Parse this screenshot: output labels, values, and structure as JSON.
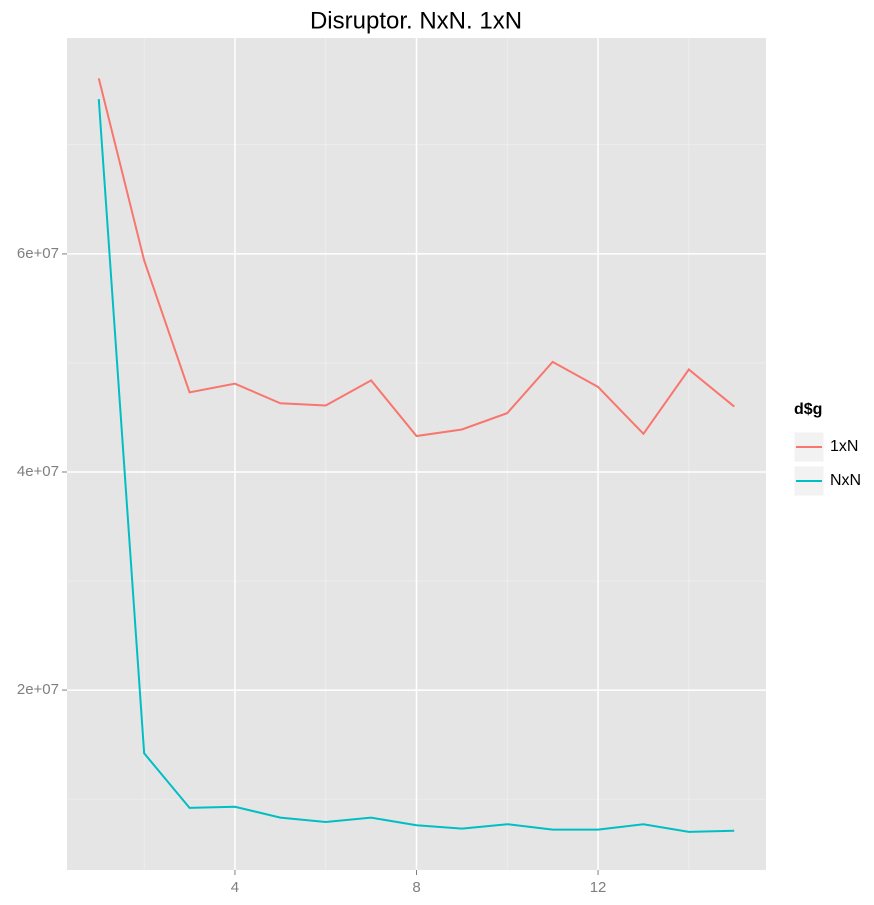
{
  "chart_data": {
    "type": "line",
    "title": "Disruptor. NxN. 1xN",
    "x": [
      1,
      2,
      3,
      4,
      5,
      6,
      7,
      8,
      9,
      10,
      11,
      12,
      13,
      14,
      15
    ],
    "series": [
      {
        "name": "1xN",
        "color": "#f8766d",
        "values": [
          76100000,
          59400000,
          47300000,
          48100000,
          46300000,
          46100000,
          48400000,
          43300000,
          43900000,
          45400000,
          50100000,
          47800000,
          43500000,
          49400000,
          46000000
        ]
      },
      {
        "name": "NxN",
        "color": "#00bfc4",
        "values": [
          74200000,
          14200000,
          9200000,
          9300000,
          8300000,
          7900000,
          8300000,
          7600000,
          7300000,
          7700000,
          7200000,
          7200000,
          7700000,
          7000000,
          7100000
        ]
      }
    ],
    "xlim": [
      0.3,
      15.7
    ],
    "xticks": [
      4,
      8,
      12
    ],
    "minor_xticks": [
      2,
      6,
      10,
      14
    ],
    "ylim": [
      3500000,
      79800000
    ],
    "yticks": [
      {
        "value": 20000000,
        "label": "2e+07"
      },
      {
        "value": 40000000,
        "label": "4e+07"
      },
      {
        "value": 60000000,
        "label": "6e+07"
      }
    ],
    "minor_yticks": [
      10000000,
      30000000,
      50000000,
      70000000
    ],
    "grid": true,
    "legend_title": "d$g",
    "legend_position": "right"
  }
}
